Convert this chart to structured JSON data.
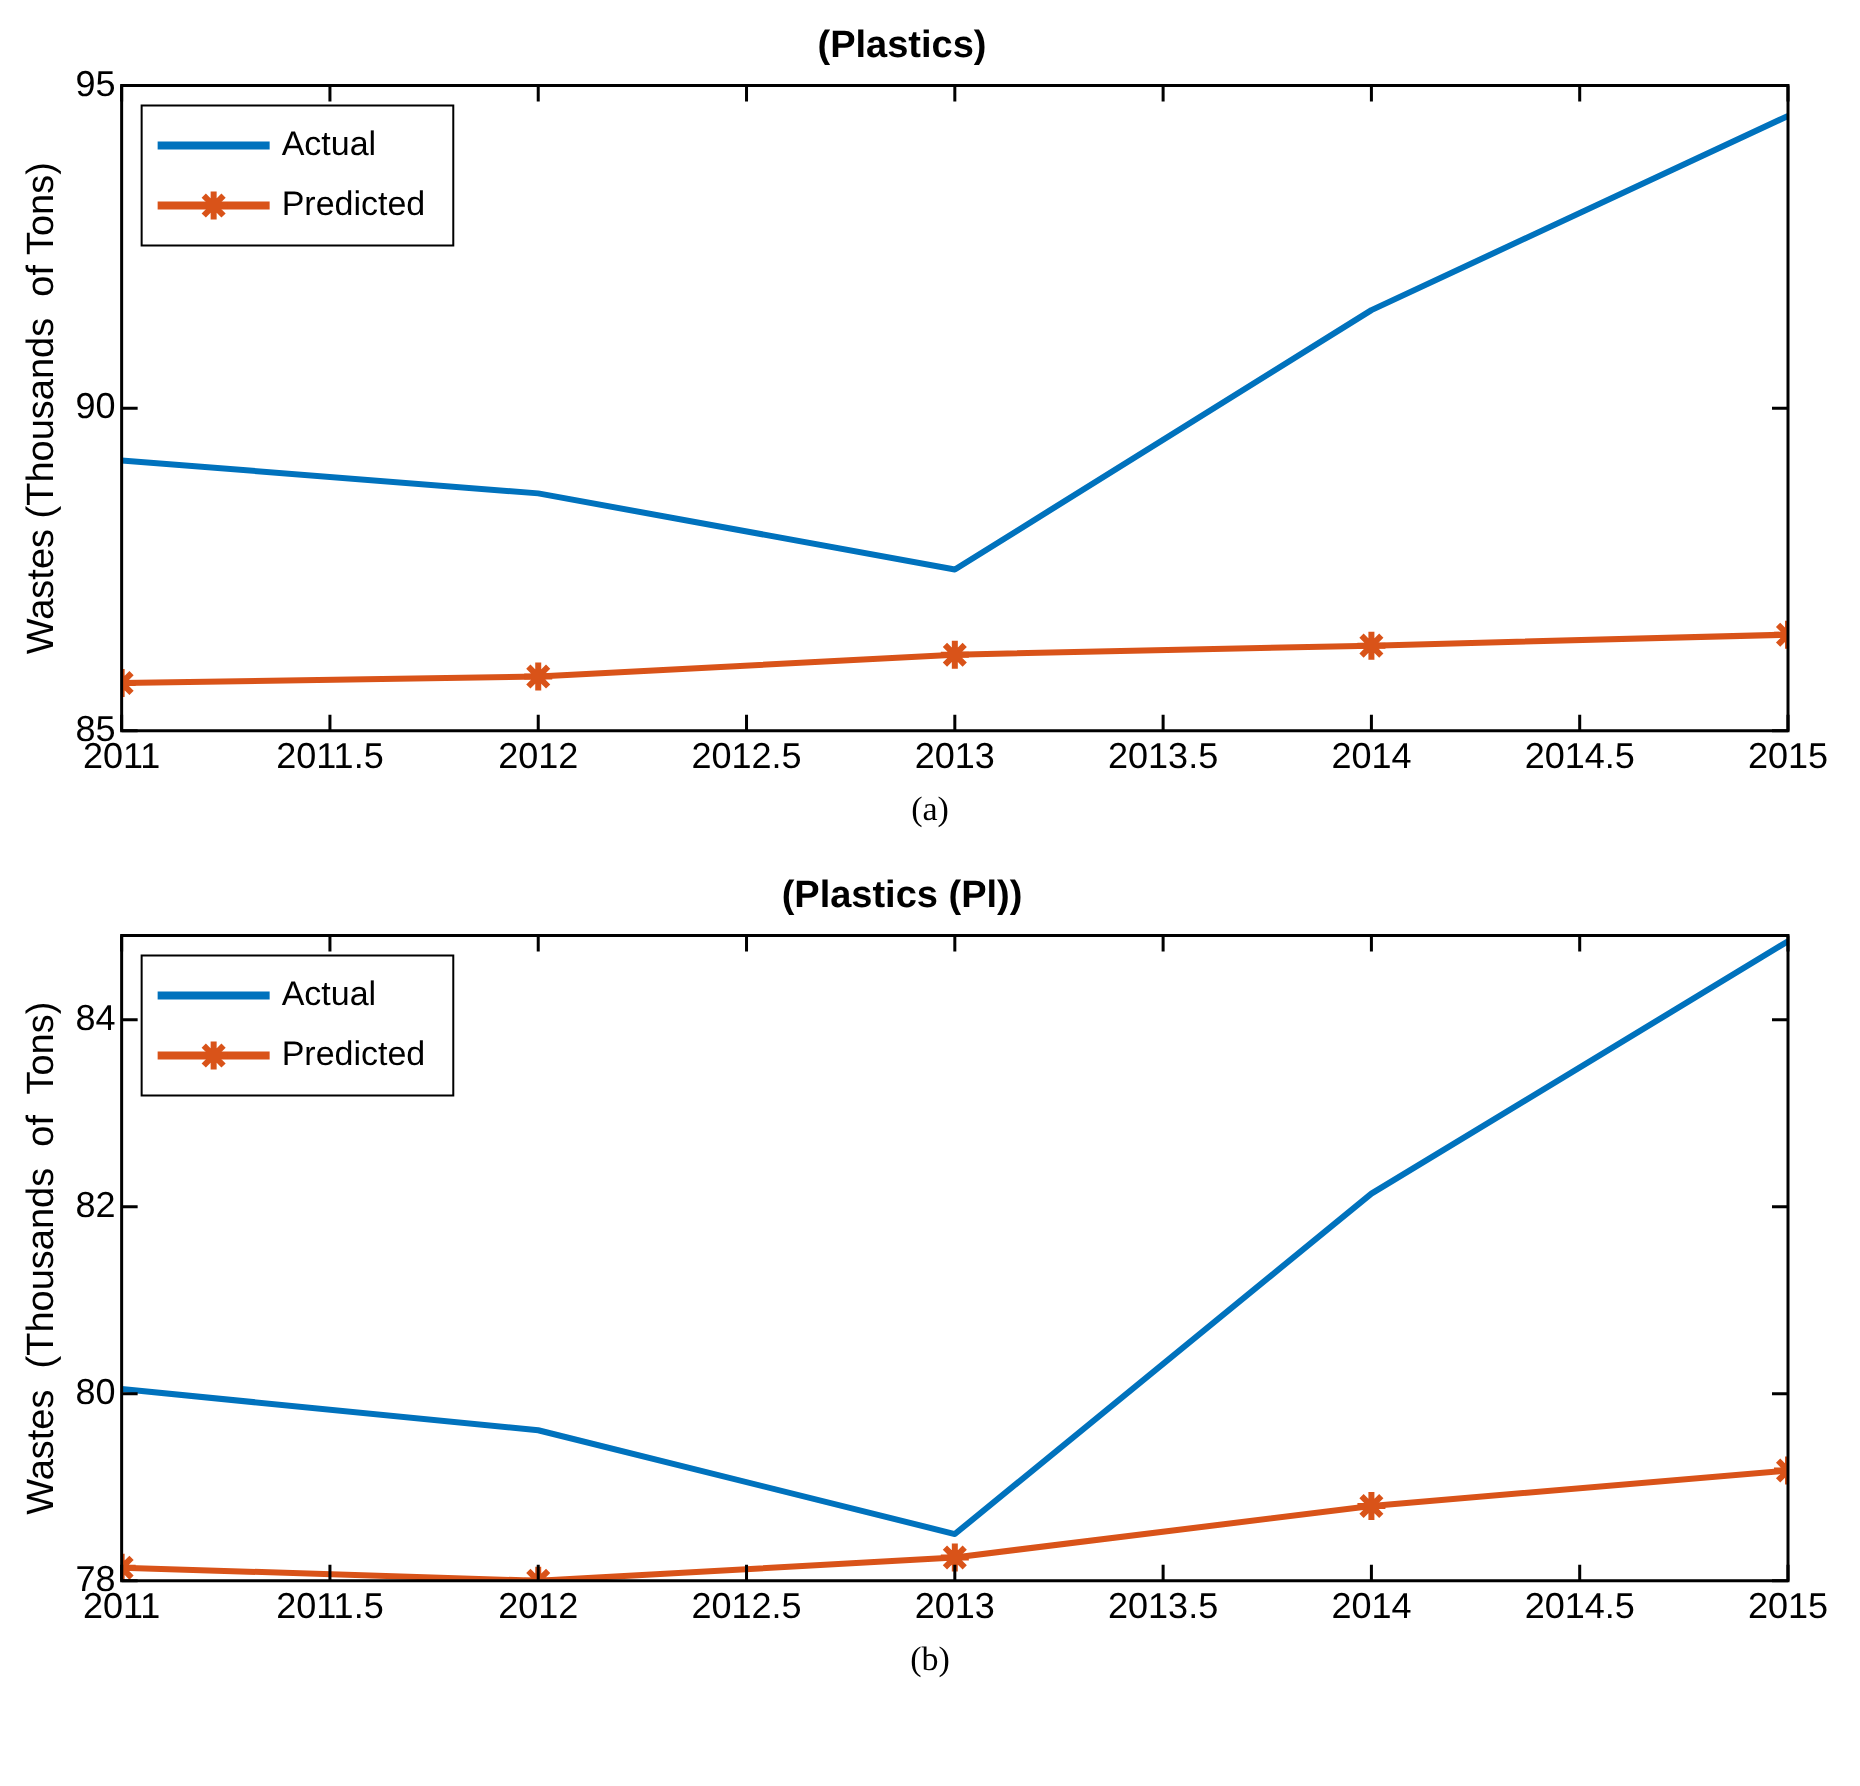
{
  "chart_data": [
    {
      "type": "line",
      "title": "(Plastics)",
      "ylabel": "Wastes (Thousands  of Tons)",
      "x": [
        2011,
        2012,
        2013,
        2014,
        2015
      ],
      "xlim": [
        2011,
        2015
      ],
      "xticks": [
        2011,
        2011.5,
        2012,
        2012.5,
        2013,
        2013.5,
        2014,
        2014.5,
        2015
      ],
      "ylim": [
        85,
        95
      ],
      "yticks": [
        85,
        90,
        95
      ],
      "legend": "top left",
      "annotations": [
        "(a)"
      ],
      "series": [
        {
          "name": "Actual",
          "color": "#0072bd",
          "values": [
            89.19,
            88.68,
            87.5,
            91.52,
            94.53
          ],
          "marker": "none"
        },
        {
          "name": "Predicted",
          "color": "#d95319",
          "values": [
            85.74,
            85.84,
            86.18,
            86.32,
            86.49
          ],
          "marker": "cross"
        }
      ]
    },
    {
      "type": "line",
      "title": "(Plastics (Pl))",
      "ylabel": "Wastes  (Thousands  of  Tons)",
      "x": [
        2011,
        2012,
        2013,
        2014,
        2015
      ],
      "xlim": [
        2011,
        2015
      ],
      "xticks": [
        2011,
        2011.5,
        2012,
        2012.5,
        2013,
        2013.5,
        2014,
        2014.5,
        2015
      ],
      "ylim": [
        78,
        84.9
      ],
      "yticks": [
        78,
        80,
        82,
        84
      ],
      "legend": "top left",
      "annotations": [
        "(b)"
      ],
      "series": [
        {
          "name": "Actual",
          "color": "#0072bd",
          "values": [
            80.05,
            79.61,
            78.5,
            82.14,
            84.84
          ],
          "marker": "none"
        },
        {
          "name": "Predicted",
          "color": "#d95319",
          "values": [
            78.14,
            78.0,
            78.25,
            78.8,
            79.18
          ],
          "marker": "cross"
        }
      ]
    }
  ]
}
